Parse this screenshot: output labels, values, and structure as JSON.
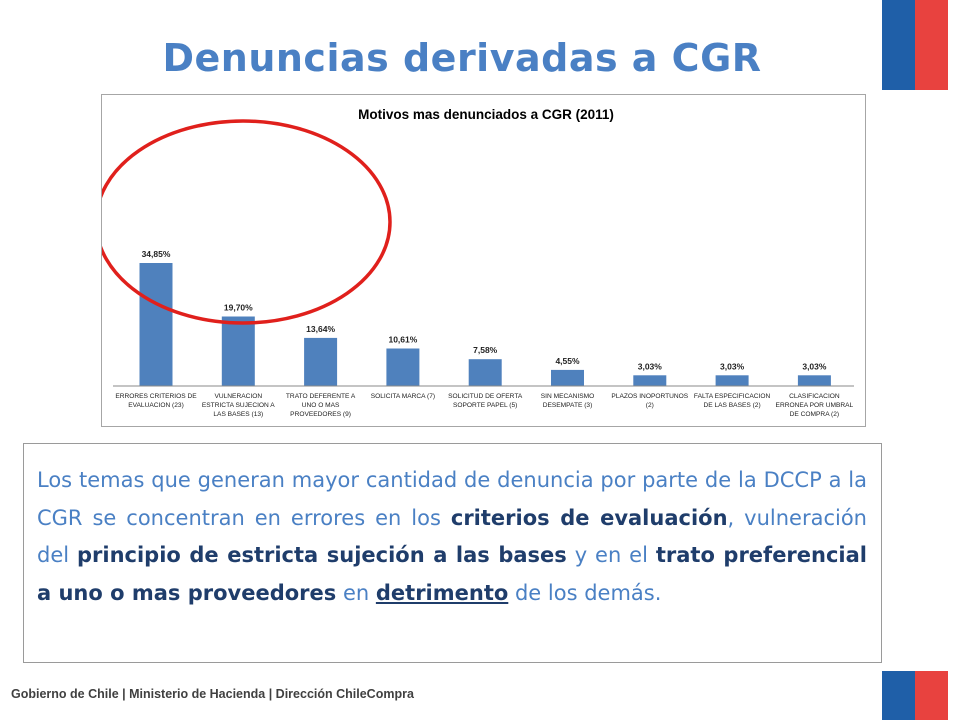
{
  "title": "Denuncias derivadas a CGR",
  "chart_data": {
    "type": "bar",
    "title": "Motivos mas denunciados a CGR (2011)",
    "categories": [
      [
        "ERRORES CRITERIOS DE",
        "EVALUACION (23)"
      ],
      [
        "VULNERACION",
        "ESTRICTA SUJECION  A",
        "LAS BASES (13)"
      ],
      [
        "TRATO DEFERENTE A",
        "UNO O MAS",
        "PROVEEDORES (9)"
      ],
      [
        "SOLICITA MARCA (7)"
      ],
      [
        "SOLICITUD DE OFERTA",
        "SOPORTE PAPEL (5)"
      ],
      [
        "SIN MECANISMO",
        "DESEMPATE (3)"
      ],
      [
        "PLAZOS INOPORTUNOS",
        "(2)"
      ],
      [
        "FALTA ESPECIFICACION",
        "DE LAS BASES (2)"
      ],
      [
        "CLASIFICACION",
        "ERRONEA POR UMBRAL",
        "DE COMPRA (2)"
      ]
    ],
    "values": [
      34.85,
      19.7,
      13.64,
      10.61,
      7.58,
      4.55,
      3.03,
      3.03,
      3.03
    ],
    "data_labels": [
      "34,85%",
      "19,70%",
      "13,64%",
      "10,61%",
      "7,58%",
      "4,55%",
      "3,03%",
      "3,03%",
      "3,03%"
    ],
    "bar_color": "#4f81bd",
    "highlight_color": "#e0201c"
  },
  "body": {
    "s1": "Los temas que generan mayor cantidad de denuncia por parte de la DCCP a la CGR se  concentran en errores en los ",
    "b1": "criterios de evaluación",
    "s2": ", vulneración del ",
    "b2": "principio de estricta sujeción a las bases",
    "s3": " y en el ",
    "b3": "trato preferencial a uno o mas proveedores",
    "s4": " en ",
    "b4": "detrimento",
    "s5": " de los demás."
  },
  "footer": "Gobierno de Chile | Ministerio de Hacienda | Dirección ChileCompra",
  "colors": {
    "title": "#4a80c4",
    "emphasis": "#1f3d6b",
    "flag_blue": "#1f5fa8",
    "flag_red": "#e8423f"
  }
}
